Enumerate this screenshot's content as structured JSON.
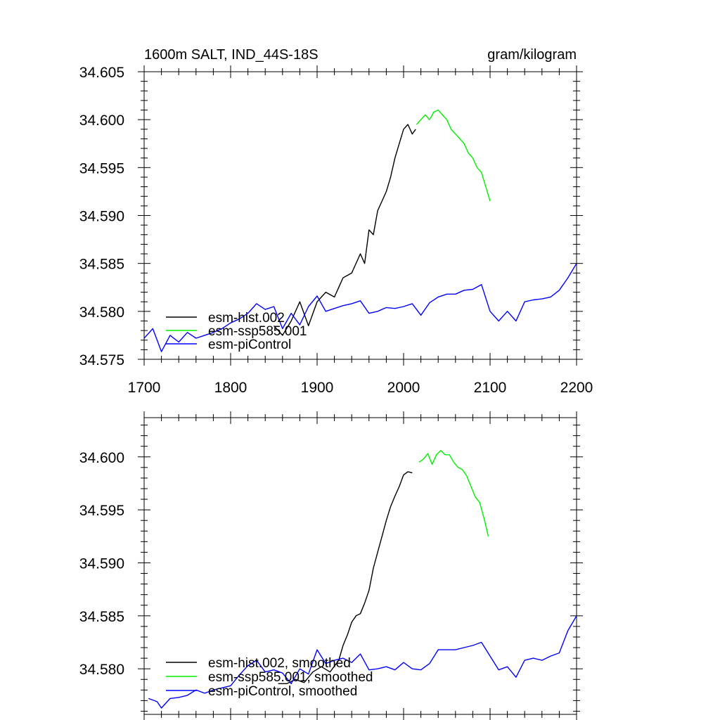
{
  "chart_data": [
    {
      "type": "line",
      "title_left": "1600m SALT, IND_44S-18S",
      "title_right": "gram/kilogram",
      "xlim": [
        1700,
        2200
      ],
      "ylim": [
        34.575,
        34.605
      ],
      "x_ticks": [
        "1700",
        "1800",
        "1900",
        "2000",
        "2100",
        "2200"
      ],
      "y_ticks": [
        "34.575",
        "34.580",
        "34.585",
        "34.590",
        "34.595",
        "34.600",
        "34.605"
      ],
      "grid": false,
      "legend_position": "bottom-left",
      "series": [
        {
          "name": "esm-hist.002",
          "color": "#000000",
          "x": [
            1850,
            1860,
            1870,
            1880,
            1890,
            1900,
            1910,
            1920,
            1930,
            1940,
            1950,
            1955,
            1960,
            1965,
            1970,
            1975,
            1980,
            1985,
            1990,
            1995,
            2000,
            2005,
            2010,
            2014
          ],
          "y": [
            34.5785,
            34.5775,
            34.579,
            34.581,
            34.5785,
            34.581,
            34.582,
            34.5815,
            34.5835,
            34.584,
            34.586,
            34.585,
            34.5885,
            34.588,
            34.5905,
            34.5915,
            34.5925,
            34.594,
            34.596,
            34.5975,
            34.599,
            34.5995,
            34.5985,
            34.599
          ]
        },
        {
          "name": "esm-ssp585.001",
          "color": "#00ee00",
          "x": [
            2015,
            2020,
            2025,
            2030,
            2035,
            2040,
            2045,
            2050,
            2055,
            2060,
            2065,
            2070,
            2075,
            2080,
            2085,
            2090,
            2095,
            2100
          ],
          "y": [
            34.5995,
            34.6,
            34.6005,
            34.6,
            34.6008,
            34.601,
            34.6005,
            34.6,
            34.599,
            34.5985,
            34.598,
            34.5975,
            34.5965,
            34.596,
            34.595,
            34.5945,
            34.593,
            34.5915
          ]
        },
        {
          "name": "esm-piControl",
          "color": "#0000ff",
          "x": [
            1700,
            1710,
            1720,
            1730,
            1740,
            1750,
            1760,
            1770,
            1780,
            1790,
            1800,
            1810,
            1820,
            1830,
            1840,
            1850,
            1860,
            1870,
            1880,
            1890,
            1900,
            1910,
            1920,
            1930,
            1940,
            1950,
            1960,
            1970,
            1980,
            1990,
            2000,
            2010,
            2020,
            2030,
            2040,
            2050,
            2060,
            2070,
            2080,
            2090,
            2100,
            2110,
            2120,
            2130,
            2140,
            2150,
            2160,
            2170,
            2180,
            2190,
            2200
          ],
          "y": [
            34.5772,
            34.5782,
            34.5758,
            34.5775,
            34.5768,
            34.5778,
            34.5772,
            34.5775,
            34.5778,
            34.5782,
            34.5788,
            34.5792,
            34.5798,
            34.5808,
            34.5802,
            34.5805,
            34.5782,
            34.5798,
            34.5786,
            34.5805,
            34.5816,
            34.58,
            34.5803,
            34.5806,
            34.5808,
            34.5811,
            34.5798,
            34.58,
            34.5804,
            34.5803,
            34.5805,
            34.5808,
            34.5796,
            34.5809,
            34.5815,
            34.5818,
            34.5818,
            34.5822,
            34.5823,
            34.5828,
            34.58,
            34.579,
            34.58,
            34.579,
            34.581,
            34.5812,
            34.5813,
            34.5815,
            34.5822,
            34.5835,
            34.585
          ]
        }
      ]
    },
    {
      "type": "line",
      "xlim": [
        1700,
        2200
      ],
      "ylim": [
        34.5757,
        34.6037
      ],
      "y_ticks": [
        "34.580",
        "34.585",
        "34.590",
        "34.595",
        "34.600"
      ],
      "grid": false,
      "legend_position": "bottom-left",
      "series": [
        {
          "name": "esm-hist.002, smoothed",
          "color": "#000000",
          "x": [
            1855,
            1865,
            1875,
            1885,
            1895,
            1905,
            1915,
            1925,
            1930,
            1935,
            1940,
            1945,
            1950,
            1955,
            1960,
            1965,
            1970,
            1975,
            1980,
            1985,
            1990,
            1995,
            2000,
            2005,
            2010
          ],
          "y": [
            34.5786,
            34.5786,
            34.579,
            34.5787,
            34.5797,
            34.5802,
            34.5797,
            34.5808,
            34.5822,
            34.5832,
            34.5844,
            34.585,
            34.5852,
            34.5862,
            34.5874,
            34.5895,
            34.591,
            34.5925,
            34.594,
            34.5953,
            34.5963,
            34.5972,
            34.5983,
            34.5986,
            34.5985
          ]
        },
        {
          "name": "esm-ssp585.001, smoothed",
          "color": "#00ee00",
          "x": [
            2018,
            2023,
            2028,
            2033,
            2038,
            2043,
            2048,
            2053,
            2058,
            2063,
            2068,
            2073,
            2078,
            2083,
            2088,
            2093,
            2098
          ],
          "y": [
            34.5995,
            34.5998,
            34.6003,
            34.5993,
            34.6002,
            34.6006,
            34.6002,
            34.6002,
            34.5995,
            34.599,
            34.5988,
            34.5982,
            34.5972,
            34.5962,
            34.5957,
            34.5942,
            34.5925
          ]
        },
        {
          "name": "esm-piControl, smoothed",
          "color": "#0000ff",
          "x": [
            1705,
            1715,
            1720,
            1730,
            1740,
            1750,
            1760,
            1770,
            1780,
            1790,
            1800,
            1810,
            1820,
            1830,
            1840,
            1850,
            1860,
            1870,
            1880,
            1890,
            1900,
            1910,
            1920,
            1930,
            1940,
            1950,
            1960,
            1970,
            1980,
            1990,
            2000,
            2010,
            2020,
            2030,
            2040,
            2050,
            2060,
            2070,
            2080,
            2090,
            2100,
            2110,
            2120,
            2130,
            2140,
            2150,
            2160,
            2170,
            2180,
            2190,
            2200
          ],
          "y": [
            34.5772,
            34.5769,
            34.5763,
            34.5772,
            34.5773,
            34.5775,
            34.578,
            34.5777,
            34.578,
            34.5782,
            34.5784,
            34.5794,
            34.5803,
            34.5808,
            34.5797,
            34.5799,
            34.5796,
            34.5786,
            34.58,
            34.5795,
            34.5818,
            34.5805,
            34.5808,
            34.581,
            34.5806,
            34.5814,
            34.5799,
            34.58,
            34.5802,
            34.5799,
            34.5806,
            34.58,
            34.5799,
            34.5805,
            34.5818,
            34.5818,
            34.5818,
            34.582,
            34.5822,
            34.5825,
            34.5812,
            34.5799,
            34.5802,
            34.5792,
            34.5808,
            34.581,
            34.5808,
            34.5812,
            34.5815,
            34.5836,
            34.585
          ]
        }
      ]
    }
  ]
}
